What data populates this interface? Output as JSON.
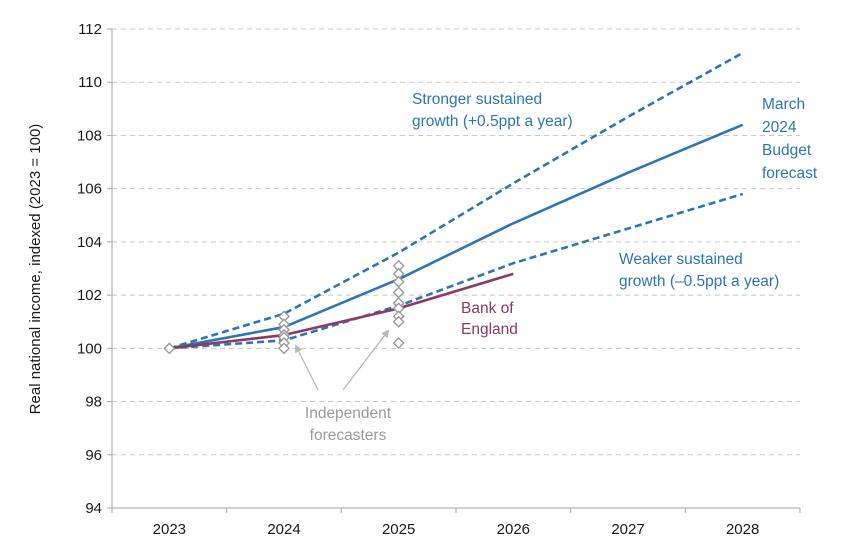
{
  "chart_data": {
    "type": "line",
    "title": "",
    "xlabel": "",
    "ylabel": "Real national income, indexed (2023 = 100)",
    "x": [
      2023,
      2024,
      2025,
      2026,
      2027,
      2028
    ],
    "xticks": [
      "2023",
      "2024",
      "2025",
      "2026",
      "2027",
      "2028"
    ],
    "ylim": [
      94,
      112
    ],
    "yticks": [
      "94",
      "96",
      "98",
      "100",
      "102",
      "104",
      "106",
      "108",
      "110",
      "112"
    ],
    "grid": "horizontal dashed",
    "series": [
      {
        "name": "March 2024 Budget forecast",
        "style": "solid",
        "color": "#2e75b6",
        "x": [
          2023,
          2024,
          2025,
          2026,
          2027,
          2028
        ],
        "values": [
          100,
          100.8,
          102.6,
          104.7,
          106.6,
          108.4
        ]
      },
      {
        "name": "Stronger sustained growth (+0.5ppt a year)",
        "style": "dashed",
        "color": "#2e75b6",
        "x": [
          2023,
          2024,
          2025,
          2026,
          2027,
          2028
        ],
        "values": [
          100,
          101.3,
          103.6,
          106.2,
          108.7,
          111.1
        ]
      },
      {
        "name": "Weaker sustained growth (–0.5ppt a year)",
        "style": "dashed",
        "color": "#2e75b6",
        "x": [
          2023,
          2024,
          2025,
          2026,
          2027,
          2028
        ],
        "values": [
          100,
          100.3,
          101.6,
          103.2,
          104.5,
          105.8
        ]
      },
      {
        "name": "Bank of England",
        "style": "solid",
        "color": "#8b3a62",
        "x": [
          2023,
          2024,
          2025,
          2026
        ],
        "values": [
          100,
          100.5,
          101.5,
          102.8
        ]
      }
    ],
    "independent_forecasters": {
      "name": "Independent forecasters",
      "color": "#9a9a9a",
      "points": [
        {
          "x": 2023,
          "y": 100.0
        },
        {
          "x": 2024,
          "y": 101.2
        },
        {
          "x": 2024,
          "y": 100.9
        },
        {
          "x": 2024,
          "y": 100.7
        },
        {
          "x": 2024,
          "y": 100.5
        },
        {
          "x": 2024,
          "y": 100.4
        },
        {
          "x": 2024,
          "y": 100.2
        },
        {
          "x": 2024,
          "y": 100.0
        },
        {
          "x": 2025,
          "y": 103.1
        },
        {
          "x": 2025,
          "y": 102.8
        },
        {
          "x": 2025,
          "y": 102.5
        },
        {
          "x": 2025,
          "y": 102.1
        },
        {
          "x": 2025,
          "y": 101.7
        },
        {
          "x": 2025,
          "y": 101.5
        },
        {
          "x": 2025,
          "y": 101.2
        },
        {
          "x": 2025,
          "y": 101.0
        },
        {
          "x": 2025,
          "y": 100.2
        }
      ]
    },
    "annotations": {
      "stronger": [
        "Stronger sustained",
        "growth (+0.5ppt a year)"
      ],
      "budget": [
        "March",
        "2024",
        "Budget",
        "forecast"
      ],
      "weaker": [
        "Weaker sustained",
        "growth (–0.5ppt a year)"
      ],
      "boe": [
        "Bank of",
        "England"
      ],
      "independent": [
        "Independent",
        "forecasters"
      ]
    },
    "colors": {
      "budget": "#2e75b6",
      "boe": "#8b3a62",
      "independent": "#9a9a9a",
      "grid": "#c8c8c8",
      "axis": "#a6a6a6"
    }
  }
}
